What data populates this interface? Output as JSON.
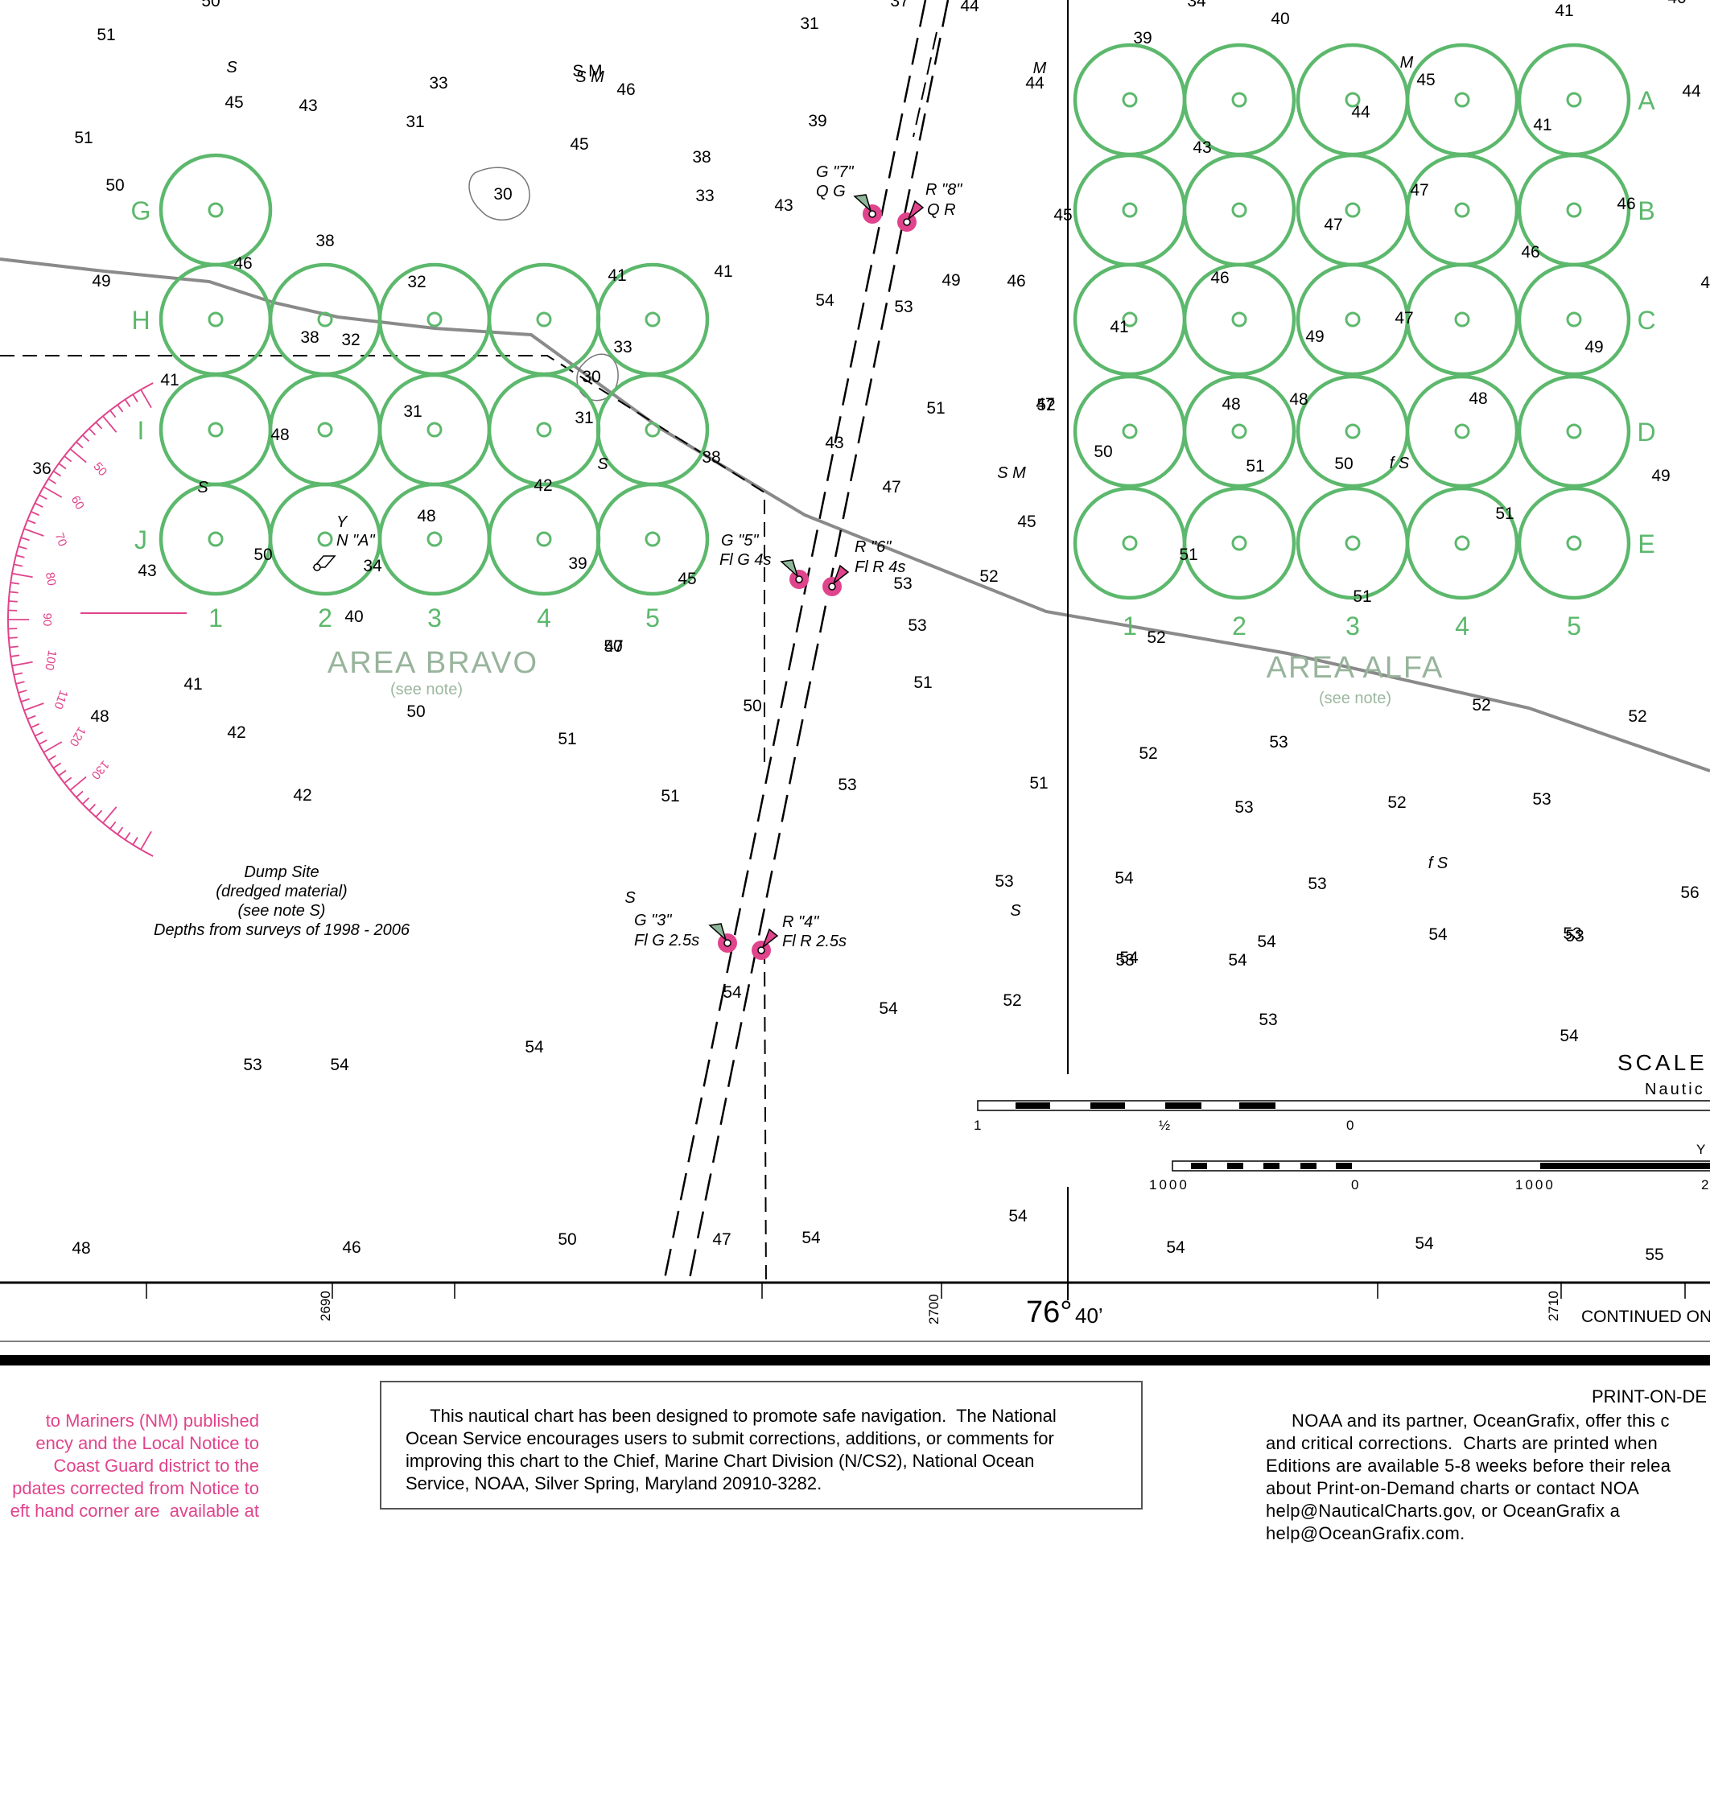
{
  "areas": [
    {
      "name": "AREA  BRAVO",
      "note": "(see note)",
      "rows": [
        "G",
        "H",
        "I",
        "J"
      ],
      "cols": [
        "1",
        "2",
        "3",
        "4",
        "5"
      ]
    },
    {
      "name": "AREA  ALFA",
      "note": "(see note)",
      "rows": [
        "A",
        "B",
        "C",
        "D",
        "E"
      ],
      "cols": [
        "1",
        "2",
        "3",
        "4",
        "5"
      ]
    }
  ],
  "buoys": [
    {
      "id": "g7",
      "line1": "G \"7\"",
      "line2": "Q G",
      "color": "green"
    },
    {
      "id": "r8",
      "line1": "R \"8\"",
      "line2": "Q R",
      "color": "red"
    },
    {
      "id": "g5",
      "line1": "G \"5\"",
      "line2": "Fl G 4s",
      "color": "green"
    },
    {
      "id": "r6",
      "line1": "R \"6\"",
      "line2": "Fl R 4s",
      "color": "red"
    },
    {
      "id": "g3",
      "line1": "G \"3\"",
      "line2": "Fl G 2.5s",
      "color": "green"
    },
    {
      "id": "r4",
      "line1": "R \"4\"",
      "line2": "Fl R 2.5s",
      "color": "red"
    },
    {
      "id": "na",
      "line1": "Y",
      "line2": "N \"A\"",
      "color": "yellow"
    }
  ],
  "dump_site": {
    "line1": "Dump Site",
    "line2": "(dredged material)",
    "line3": "(see note S)",
    "line4": "Depths from surveys of 1998 - 2006"
  },
  "bottom_marks": [
    "S",
    "S M",
    "S",
    "S",
    "S",
    "S",
    "S M",
    "f S",
    "f S",
    "M",
    "M"
  ],
  "compass_rose_labels": [
    "50",
    "60",
    "70",
    "80",
    "90",
    "100",
    "110",
    "120",
    "130"
  ],
  "compass_rose_bearings": [
    50,
    60,
    70,
    80,
    90,
    100,
    110,
    120,
    130
  ],
  "compass_rose_label_90": "90",
  "soundings": [
    "50",
    "51",
    "45",
    "43",
    "51",
    "50",
    "33",
    "31",
    "30",
    "S M",
    "46",
    "45",
    "38",
    "33",
    "31",
    "39",
    "43",
    "44",
    "37",
    "34",
    "39",
    "40",
    "41",
    "40",
    "44",
    "43",
    "44",
    "45",
    "41",
    "44",
    "46",
    "46",
    "47",
    "47",
    "45",
    "46",
    "41",
    "46",
    "49",
    "48",
    "47",
    "48",
    "41",
    "49",
    "48",
    "47",
    "50",
    "50",
    "51",
    "49",
    "51",
    "51",
    "51",
    "52",
    "52",
    "52",
    "53",
    "53",
    "53",
    "52",
    "54",
    "54",
    "53",
    "53",
    "56",
    "55",
    "54",
    "54",
    "54",
    "38",
    "49",
    "46",
    "32",
    "38",
    "32",
    "41",
    "41",
    "33",
    "30",
    "41",
    "36",
    "31",
    "48",
    "31",
    "38",
    "42",
    "48",
    "43",
    "50",
    "34",
    "39",
    "45",
    "40",
    "47",
    "41",
    "48",
    "50",
    "42",
    "42",
    "51",
    "51",
    "51",
    "51",
    "52",
    "53",
    "53",
    "54",
    "53",
    "52",
    "53",
    "53",
    "54",
    "53",
    "54",
    "54",
    "54",
    "54",
    "54",
    "54",
    "50",
    "47",
    "46",
    "48",
    "50",
    "50",
    "49",
    "51",
    "47",
    "45",
    "43",
    "53",
    "52",
    "53",
    "54",
    "52",
    "53",
    "54"
  ],
  "grid_ticks": {
    "left": "2690",
    "mid": "2700",
    "right": "2710"
  },
  "longitude": {
    "deg": "76°",
    "min": "40’"
  },
  "continued": "CONTINUED ON",
  "scale": {
    "title": "SCALE",
    "subtitle": "Nautic",
    "nm_labels": [
      "1",
      "½",
      "0"
    ],
    "yd_labels": [
      "1000",
      "0",
      "1000",
      "2"
    ],
    "yd_unit": "Y"
  },
  "notes": {
    "left_pink": "to Mariners (NM) published\nency and the Local Notice to\nCoast Guard district to the\npdates corrected from Notice to\neft hand corner are  available at",
    "safety": "     This nautical chart has been designed to promote safe navigation.  The National\nOcean Service encourages users to submit corrections, additions, or comments for\nimproving this chart to the Chief, Marine Chart Division (N/CS2), National Ocean\nService, NOAA, Silver Spring, Maryland 20910-3282.",
    "pod_title": "PRINT-ON-DE",
    "pod_text": "     NOAA and its partner, OceanGrafix, offer this c\nand critical corrections.  Charts are printed when\nEditions are available 5-8 weeks before their relea\nabout Print-on-Demand charts or contact NOA\nhelp@NauticalCharts.gov, or OceanGrafix a\nhelp@OceanGrafix.com."
  },
  "colors": {
    "area_green": "#5cb86c",
    "area_name": "#98b49c",
    "buoy_magenta": "#e0448c",
    "cable_gray": "#8a8a8a"
  }
}
